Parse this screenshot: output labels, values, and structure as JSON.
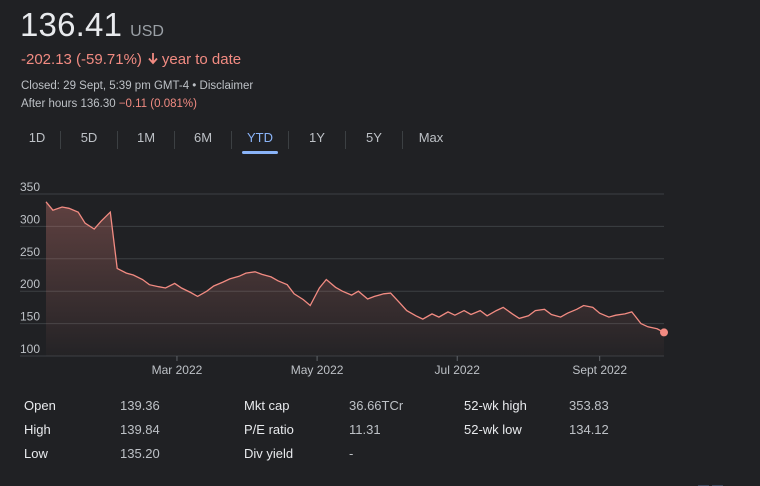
{
  "quote": {
    "price": "136.41",
    "currency": "USD",
    "change": "-202.13 (-59.71%)",
    "change_period": "year to date",
    "closed_text": "Closed: 29 Sept, 5:39 pm GMT-4 • Disclaimer",
    "after_hours_label": "After hours 136.30",
    "after_hours_change": "−0.11 (0.081%)"
  },
  "tabs": [
    {
      "label": "1D",
      "active": false
    },
    {
      "label": "5D",
      "active": false
    },
    {
      "label": "1M",
      "active": false
    },
    {
      "label": "6M",
      "active": false
    },
    {
      "label": "YTD",
      "active": true
    },
    {
      "label": "1Y",
      "active": false
    },
    {
      "label": "5Y",
      "active": false
    },
    {
      "label": "Max",
      "active": false
    }
  ],
  "colors": {
    "line": "#f28b82",
    "accent": "#8ab4f8",
    "grid": "#3c4043"
  },
  "chart_data": {
    "type": "area",
    "y_ticks": [
      "350",
      "300",
      "250",
      "200",
      "150",
      "100"
    ],
    "ylim": [
      100,
      350
    ],
    "x_ticks": [
      {
        "label": "Mar 2022",
        "x": "2022-03-01"
      },
      {
        "label": "May 2022",
        "x": "2022-05-01"
      },
      {
        "label": "Jul 2022",
        "x": "2022-07-01"
      },
      {
        "label": "Sept 2022",
        "x": "2022-09-01"
      }
    ],
    "xlim": [
      "2022-01-03",
      "2022-09-29"
    ],
    "grid": true,
    "series": [
      {
        "x": [
          "2022-01-03",
          "2022-01-06",
          "2022-01-10",
          "2022-01-13",
          "2022-01-17",
          "2022-01-20",
          "2022-01-24",
          "2022-01-27",
          "2022-01-31",
          "2022-02-03",
          "2022-02-07",
          "2022-02-10",
          "2022-02-14",
          "2022-02-17",
          "2022-02-21",
          "2022-02-24",
          "2022-02-28",
          "2022-03-03",
          "2022-03-07",
          "2022-03-10",
          "2022-03-14",
          "2022-03-17",
          "2022-03-21",
          "2022-03-24",
          "2022-03-28",
          "2022-03-31",
          "2022-04-04",
          "2022-04-07",
          "2022-04-11",
          "2022-04-14",
          "2022-04-18",
          "2022-04-21",
          "2022-04-25",
          "2022-04-28",
          "2022-05-02",
          "2022-05-05",
          "2022-05-09",
          "2022-05-12",
          "2022-05-16",
          "2022-05-19",
          "2022-05-23",
          "2022-05-26",
          "2022-05-30",
          "2022-06-02",
          "2022-06-06",
          "2022-06-09",
          "2022-06-13",
          "2022-06-16",
          "2022-06-20",
          "2022-06-23",
          "2022-06-27",
          "2022-06-30",
          "2022-07-04",
          "2022-07-07",
          "2022-07-11",
          "2022-07-14",
          "2022-07-18",
          "2022-07-21",
          "2022-07-25",
          "2022-07-28",
          "2022-08-01",
          "2022-08-04",
          "2022-08-08",
          "2022-08-11",
          "2022-08-15",
          "2022-08-18",
          "2022-08-22",
          "2022-08-25",
          "2022-08-29",
          "2022-09-01",
          "2022-09-05",
          "2022-09-08",
          "2022-09-12",
          "2022-09-15",
          "2022-09-19",
          "2022-09-22",
          "2022-09-26",
          "2022-09-29"
        ],
        "y": [
          338,
          325,
          330,
          328,
          322,
          305,
          296,
          308,
          322,
          235,
          228,
          225,
          218,
          210,
          207,
          205,
          212,
          205,
          198,
          192,
          200,
          208,
          214,
          219,
          223,
          228,
          230,
          226,
          222,
          216,
          210,
          196,
          187,
          178,
          205,
          218,
          206,
          200,
          194,
          200,
          188,
          192,
          196,
          197,
          182,
          170,
          162,
          157,
          165,
          160,
          168,
          163,
          170,
          164,
          170,
          162,
          170,
          175,
          165,
          158,
          162,
          170,
          172,
          164,
          160,
          166,
          172,
          178,
          175,
          166,
          160,
          163,
          165,
          168,
          150,
          145,
          142,
          136.41
        ]
      }
    ]
  },
  "stats": [
    [
      {
        "label": "Open",
        "value": "139.36"
      },
      {
        "label": "High",
        "value": "139.84"
      },
      {
        "label": "Low",
        "value": "135.20"
      }
    ],
    [
      {
        "label": "Mkt cap",
        "value": "36.66TCr"
      },
      {
        "label": "P/E ratio",
        "value": "11.31"
      },
      {
        "label": "Div yield",
        "value": "-"
      }
    ],
    [
      {
        "label": "52-wk high",
        "value": "353.83"
      },
      {
        "label": "52-wk low",
        "value": "134.12"
      }
    ]
  ]
}
